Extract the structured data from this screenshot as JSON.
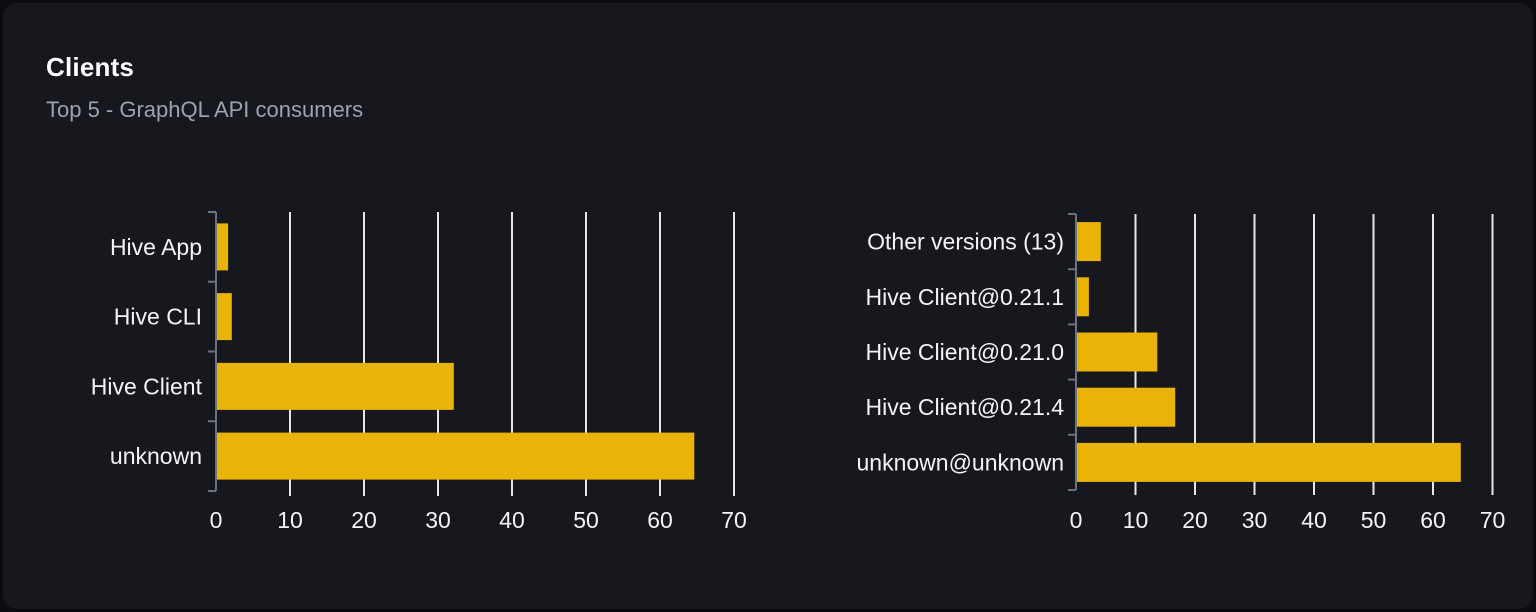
{
  "card": {
    "title": "Clients",
    "subtitle": "Top 5 - GraphQL API consumers"
  },
  "colors": {
    "page_background": "#0a0c0f",
    "card_background": "#16181d",
    "bar": "#eab308",
    "gridline": "#e5e7eb",
    "axis": "#6b7280",
    "title_text": "#ffffff",
    "subtitle_text": "#9ca3af",
    "label_text": "#f3f4f6"
  },
  "chart_data": [
    {
      "type": "bar",
      "orientation": "horizontal",
      "title": "",
      "categories": [
        "Hive App",
        "Hive CLI",
        "Hive Client",
        "unknown"
      ],
      "values": [
        1.5,
        2,
        32,
        64.5
      ],
      "xlabel": "",
      "ylabel": "",
      "xlim": [
        0,
        70
      ],
      "xticks": [
        0,
        10,
        20,
        30,
        40,
        50,
        60,
        70
      ],
      "grid": "vertical",
      "legend": "none",
      "bar_color": "#eab308"
    },
    {
      "type": "bar",
      "orientation": "horizontal",
      "title": "",
      "categories": [
        "Other versions (13)",
        "Hive Client@0.21.1",
        "Hive Client@0.21.0",
        "Hive Client@0.21.4",
        "unknown@unknown"
      ],
      "values": [
        4,
        2,
        13.5,
        16.5,
        64.5
      ],
      "xlabel": "",
      "ylabel": "",
      "xlim": [
        0,
        70
      ],
      "xticks": [
        0,
        10,
        20,
        30,
        40,
        50,
        60,
        70
      ],
      "grid": "vertical",
      "legend": "none",
      "bar_color": "#eab308"
    }
  ]
}
